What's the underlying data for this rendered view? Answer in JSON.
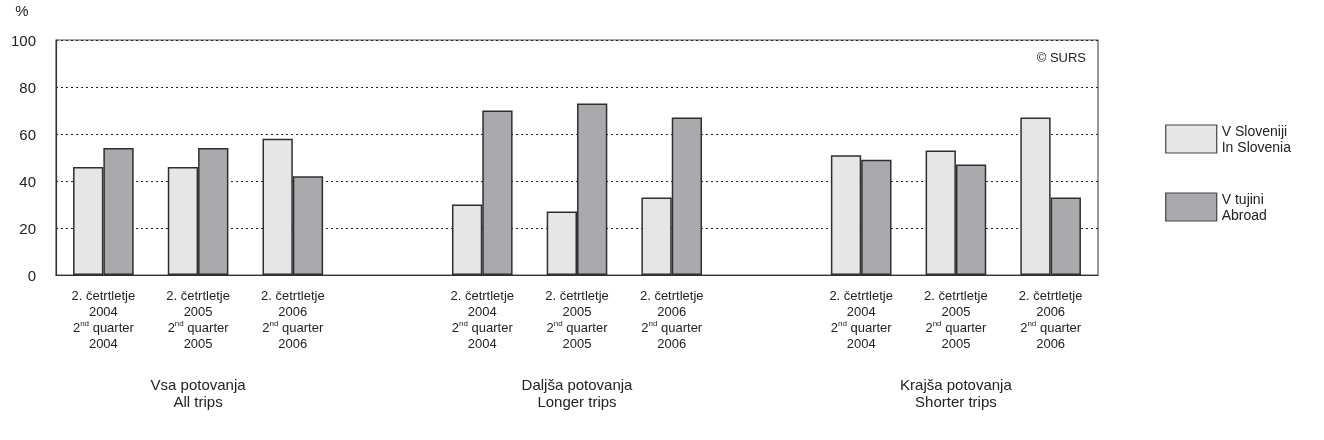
{
  "chart_data": {
    "type": "bar",
    "categories": [
      "2. četrtletje\n2004\n2$^{nd}$ quarter\n2004",
      "2. četrtletje\n2005\n2$^{nd}$ quarter\n2005",
      "2. četrtletje\n2006\n2$^{nd}$ quarter\n2006",
      null,
      "2. četrtletje\n2004\n2$^{nd}$ quarter\n2004",
      "2. četrtletje\n2005\n2$^{nd}$ quarter\n2005",
      "2. četrtletje\n2006\n2$^{nd}$ quarter\n2006",
      null,
      "2. četrtletje\n2004\n2$^{nd}$ quarter\n2004",
      "2. četrtletje\n2005\n2$^{nd}$ quarter\n2005",
      "2. četrtletje\n2006\n2$^{nd}$ quarter\n2006"
    ],
    "series": [
      {
        "name": "V Sloveniji\nIn Slovenia",
        "color": "#e6e6e6",
        "values": [
          46,
          46,
          58,
          null,
          30,
          27,
          33,
          null,
          51,
          53,
          67
        ]
      },
      {
        "name": "V tujini\nAbroad",
        "color": "#a9aaad",
        "values": [
          54,
          54,
          42,
          null,
          70,
          73,
          67,
          null,
          49,
          47,
          33
        ]
      }
    ],
    "ylabel": "%",
    "ylim": [
      0,
      100
    ],
    "yticks": [
      0,
      20,
      40,
      60,
      80,
      100
    ],
    "grid": "y",
    "legend": "right",
    "annotations": [
      "Vsa potovanja\nAll trips",
      "Daljša potovanja\nLonger trips",
      "Krajša potovanja\nShorter trips",
      "© SURS"
    ]
  }
}
